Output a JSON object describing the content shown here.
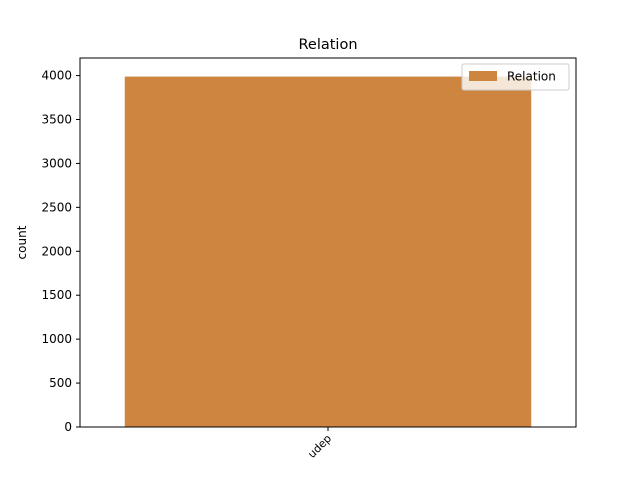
{
  "chart_data": {
    "type": "bar",
    "title": "Relation",
    "xlabel": "",
    "ylabel": "count",
    "categories": [
      "udep"
    ],
    "series": [
      {
        "name": "Relation",
        "values": [
          3985
        ],
        "color": "#cd853f"
      }
    ],
    "ylim": [
      0,
      4200
    ],
    "yticks": [
      0,
      500,
      1000,
      1500,
      2000,
      2500,
      3000,
      3500,
      4000
    ],
    "grid": false,
    "legend": "top-right"
  }
}
